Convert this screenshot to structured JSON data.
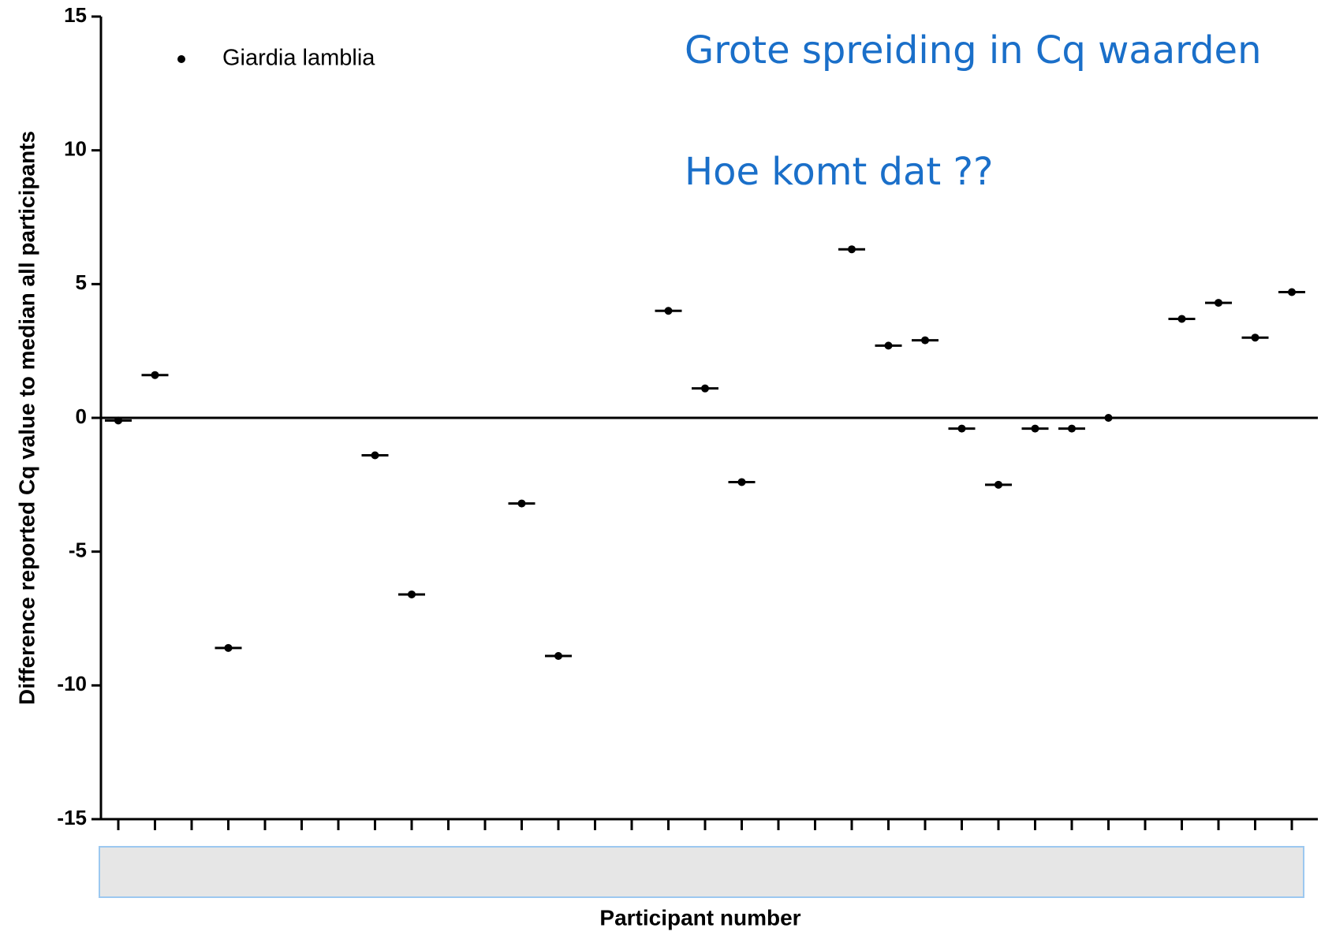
{
  "chart_data": {
    "type": "scatter",
    "ylabel": "Difference reported Cq value to median all participants",
    "xlabel": "Participant number",
    "annotations": [
      "Grote spreiding in Cq waarden",
      "Hoe komt dat ??"
    ],
    "categories": [
      null,
      null,
      null,
      null,
      null,
      null,
      null,
      null,
      null,
      null,
      null,
      null,
      null,
      null,
      null,
      null,
      null,
      null,
      null,
      null,
      null,
      null,
      null,
      null,
      null,
      null,
      null,
      null,
      null,
      null,
      null,
      null,
      null
    ],
    "series": [
      {
        "name": "Giardia lamblia",
        "color": "#000000",
        "values": [
          -0.1,
          1.6,
          null,
          -8.6,
          null,
          null,
          null,
          -1.4,
          -6.6,
          null,
          null,
          -3.2,
          -8.9,
          null,
          null,
          4.0,
          1.1,
          -2.4,
          null,
          null,
          6.3,
          2.7,
          2.9,
          -0.4,
          -2.5,
          -0.4,
          -0.4,
          0.0,
          null,
          3.7,
          4.3,
          3.0,
          4.7
        ]
      }
    ],
    "ylim": [
      -15,
      15
    ],
    "yticks": [
      -15,
      -10,
      -5,
      0,
      5,
      10,
      15
    ],
    "legend": "upper-left"
  }
}
